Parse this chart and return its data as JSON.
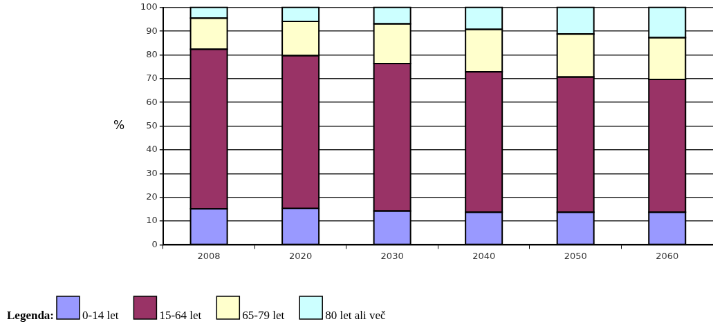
{
  "chart_data": {
    "type": "bar",
    "stacked": true,
    "ylabel": "%",
    "legend_title": "Legenda:",
    "categories": [
      "2008",
      "2020",
      "2030",
      "2040",
      "2050",
      "2060"
    ],
    "series": [
      {
        "name": "0-14 let",
        "color": "#9999ff",
        "values": [
          15.2,
          15.3,
          14.2,
          13.7,
          13.7,
          13.7
        ]
      },
      {
        "name": "15-64 let",
        "color": "#993366",
        "values": [
          67.2,
          64.4,
          62.2,
          59.2,
          57.0,
          56.0
        ]
      },
      {
        "name": "65-79 let",
        "color": "#ffffcc",
        "values": [
          13.1,
          14.4,
          16.7,
          17.9,
          18.1,
          17.6
        ]
      },
      {
        "name": "80 let ali več",
        "color": "#ccffff",
        "values": [
          4.5,
          5.9,
          6.9,
          9.2,
          11.2,
          12.7
        ]
      }
    ],
    "ylim": [
      0,
      100
    ],
    "yticks": [
      0,
      10,
      20,
      30,
      40,
      50,
      60,
      70,
      80,
      90,
      100
    ],
    "grid": "y",
    "legend": "bottom"
  }
}
